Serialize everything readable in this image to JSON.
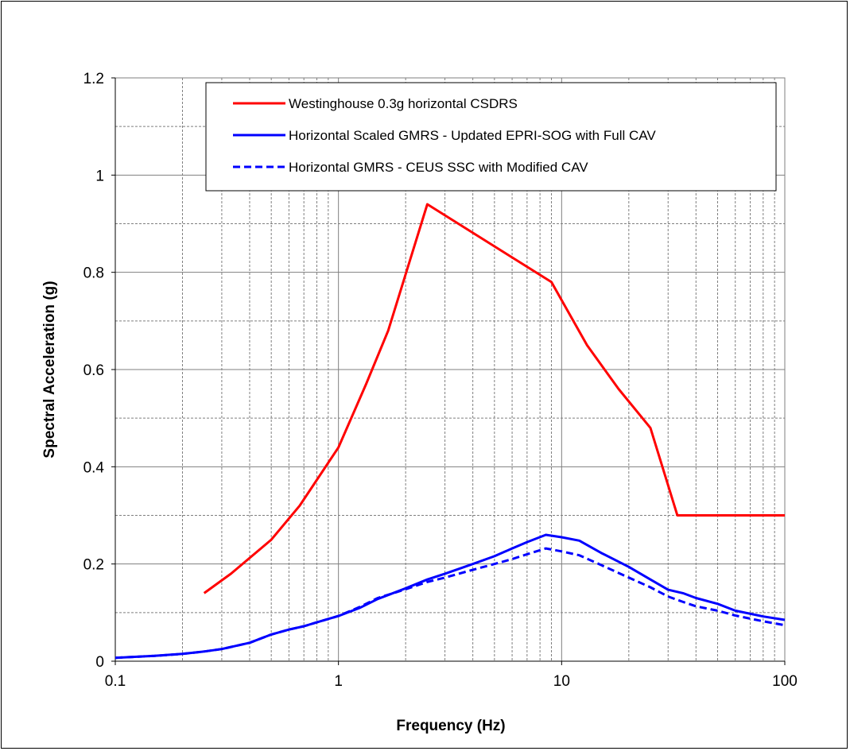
{
  "chart_data": {
    "type": "line",
    "title": "",
    "xlabel": "Frequency (Hz)",
    "ylabel": "Spectral Acceleration (g)",
    "xscale": "log",
    "xlim": [
      0.1,
      100
    ],
    "ylim": [
      0,
      1.2
    ],
    "x_ticks": [
      "0.1",
      "1",
      "10",
      "100"
    ],
    "y_ticks": [
      "0",
      "0.2",
      "0.4",
      "0.6",
      "0.8",
      "1",
      "1.2"
    ],
    "grid": true,
    "legend_position": "top",
    "series": [
      {
        "name": "Westinghouse 0.3g horizontal CSDRS",
        "color": "#ff0000",
        "dash": "solid",
        "x": [
          0.25,
          0.33,
          0.5,
          0.67,
          1.0,
          1.33,
          1.67,
          2.5,
          9.0,
          13.0,
          18.0,
          25.0,
          33.0,
          50.0,
          100.0
        ],
        "y": [
          0.14,
          0.18,
          0.25,
          0.32,
          0.44,
          0.57,
          0.68,
          0.94,
          0.78,
          0.65,
          0.56,
          0.48,
          0.3,
          0.3,
          0.3
        ]
      },
      {
        "name": "Horizontal Scaled GMRS - Updated EPRI-SOG with Full CAV",
        "color": "#0000ff",
        "dash": "solid",
        "x": [
          0.1,
          0.15,
          0.2,
          0.25,
          0.3,
          0.4,
          0.5,
          0.6,
          0.7,
          0.8,
          1.0,
          1.25,
          1.5,
          2.0,
          2.5,
          3.0,
          4.0,
          5.0,
          6.0,
          7.0,
          8.5,
          10.0,
          12.0,
          15.0,
          20.0,
          25.0,
          30.0,
          35.0,
          40.0,
          50.0,
          60.0,
          80.0,
          100.0
        ],
        "y": [
          0.007,
          0.011,
          0.015,
          0.02,
          0.025,
          0.038,
          0.055,
          0.065,
          0.072,
          0.08,
          0.093,
          0.11,
          0.128,
          0.15,
          0.168,
          0.18,
          0.2,
          0.216,
          0.232,
          0.245,
          0.26,
          0.255,
          0.248,
          0.223,
          0.194,
          0.168,
          0.147,
          0.14,
          0.13,
          0.118,
          0.104,
          0.092,
          0.085
        ]
      },
      {
        "name": "Horizontal GMRS - CEUS SSC with Modified CAV",
        "color": "#0000ff",
        "dash": "dashed",
        "x": [
          0.1,
          0.15,
          0.2,
          0.25,
          0.3,
          0.4,
          0.5,
          0.6,
          0.7,
          0.8,
          1.0,
          1.25,
          1.5,
          2.0,
          2.5,
          3.0,
          4.0,
          5.0,
          6.0,
          7.0,
          8.5,
          10.0,
          12.0,
          15.0,
          20.0,
          25.0,
          30.0,
          35.0,
          40.0,
          50.0,
          60.0,
          80.0,
          100.0
        ],
        "y": [
          0.007,
          0.011,
          0.015,
          0.02,
          0.025,
          0.038,
          0.055,
          0.065,
          0.072,
          0.08,
          0.093,
          0.112,
          0.13,
          0.148,
          0.163,
          0.172,
          0.188,
          0.2,
          0.21,
          0.22,
          0.232,
          0.226,
          0.218,
          0.198,
          0.172,
          0.152,
          0.133,
          0.122,
          0.113,
          0.104,
          0.094,
          0.082,
          0.074
        ]
      }
    ]
  }
}
